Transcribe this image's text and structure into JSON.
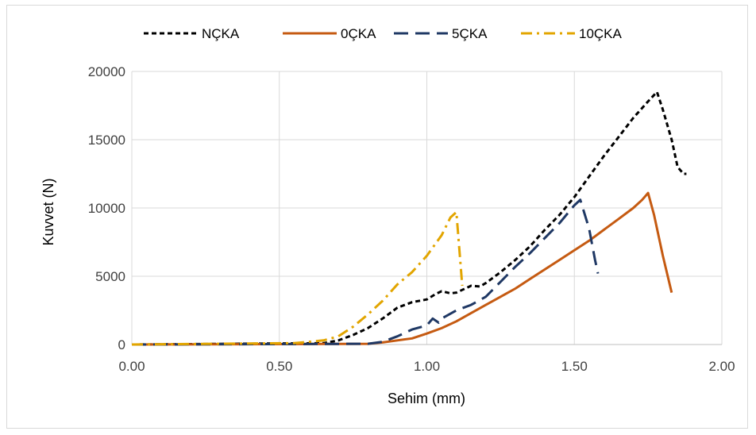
{
  "chart_data": {
    "type": "line",
    "title": "",
    "xlabel": "Sehim (mm)",
    "ylabel": "Kuvvet (N)",
    "xlim": [
      0,
      2
    ],
    "ylim": [
      0,
      20000
    ],
    "xticks": [
      0,
      0.5,
      1,
      1.5,
      2
    ],
    "xtick_labels": [
      "0.00",
      "0.50",
      "1.00",
      "1.50",
      "2.00"
    ],
    "yticks": [
      0,
      5000,
      10000,
      15000,
      20000
    ],
    "ytick_labels": [
      "0",
      "5000",
      "10000",
      "15000",
      "20000"
    ],
    "grid": true,
    "legend_position": "top",
    "series": [
      {
        "name": "NÇKA",
        "color": "#000000",
        "dash": "short-dash",
        "points": [
          [
            0,
            0
          ],
          [
            0.65,
            100
          ],
          [
            0.7,
            300
          ],
          [
            0.75,
            700
          ],
          [
            0.8,
            1200
          ],
          [
            0.85,
            1900
          ],
          [
            0.9,
            2700
          ],
          [
            0.95,
            3100
          ],
          [
            1.0,
            3300
          ],
          [
            1.03,
            3700
          ],
          [
            1.05,
            3900
          ],
          [
            1.08,
            3750
          ],
          [
            1.1,
            3800
          ],
          [
            1.13,
            4100
          ],
          [
            1.15,
            4300
          ],
          [
            1.18,
            4250
          ],
          [
            1.2,
            4500
          ],
          [
            1.25,
            5300
          ],
          [
            1.3,
            6200
          ],
          [
            1.35,
            7200
          ],
          [
            1.4,
            8400
          ],
          [
            1.45,
            9500
          ],
          [
            1.5,
            10800
          ],
          [
            1.55,
            12300
          ],
          [
            1.6,
            13800
          ],
          [
            1.65,
            15200
          ],
          [
            1.7,
            16600
          ],
          [
            1.75,
            17800
          ],
          [
            1.78,
            18500
          ],
          [
            1.8,
            17200
          ],
          [
            1.83,
            15000
          ],
          [
            1.85,
            13000
          ],
          [
            1.87,
            12500
          ],
          [
            1.88,
            12500
          ]
        ]
      },
      {
        "name": "0ÇKA",
        "color": "#c55a11",
        "dash": "solid",
        "points": [
          [
            0,
            0
          ],
          [
            0.8,
            50
          ],
          [
            0.85,
            150
          ],
          [
            0.9,
            300
          ],
          [
            0.95,
            450
          ],
          [
            1.0,
            800
          ],
          [
            1.05,
            1200
          ],
          [
            1.1,
            1700
          ],
          [
            1.15,
            2300
          ],
          [
            1.2,
            2900
          ],
          [
            1.25,
            3500
          ],
          [
            1.3,
            4100
          ],
          [
            1.35,
            4800
          ],
          [
            1.4,
            5500
          ],
          [
            1.45,
            6200
          ],
          [
            1.5,
            6900
          ],
          [
            1.55,
            7600
          ],
          [
            1.6,
            8400
          ],
          [
            1.65,
            9200
          ],
          [
            1.7,
            10000
          ],
          [
            1.73,
            10600
          ],
          [
            1.75,
            11100
          ],
          [
            1.77,
            9500
          ],
          [
            1.8,
            6500
          ],
          [
            1.83,
            3800
          ]
        ]
      },
      {
        "name": "5ÇKA",
        "color": "#1f3864",
        "dash": "long-dash",
        "points": [
          [
            0,
            0
          ],
          [
            0.8,
            50
          ],
          [
            0.85,
            200
          ],
          [
            0.9,
            600
          ],
          [
            0.95,
            1100
          ],
          [
            1.0,
            1400
          ],
          [
            1.02,
            1900
          ],
          [
            1.04,
            1600
          ],
          [
            1.05,
            1900
          ],
          [
            1.1,
            2500
          ],
          [
            1.15,
            2900
          ],
          [
            1.2,
            3500
          ],
          [
            1.25,
            4600
          ],
          [
            1.3,
            5700
          ],
          [
            1.35,
            6700
          ],
          [
            1.4,
            7800
          ],
          [
            1.45,
            8900
          ],
          [
            1.5,
            10200
          ],
          [
            1.52,
            10600
          ],
          [
            1.55,
            8500
          ],
          [
            1.57,
            6200
          ],
          [
            1.58,
            5200
          ]
        ]
      },
      {
        "name": "10ÇKA",
        "color": "#e2a500",
        "dash": "dash-dot",
        "points": [
          [
            0,
            0
          ],
          [
            0.55,
            100
          ],
          [
            0.6,
            200
          ],
          [
            0.65,
            300
          ],
          [
            0.7,
            600
          ],
          [
            0.75,
            1300
          ],
          [
            0.8,
            2200
          ],
          [
            0.85,
            3200
          ],
          [
            0.9,
            4400
          ],
          [
            0.95,
            5300
          ],
          [
            1.0,
            6500
          ],
          [
            1.05,
            8000
          ],
          [
            1.08,
            9300
          ],
          [
            1.1,
            9700
          ],
          [
            1.11,
            7000
          ],
          [
            1.12,
            4300
          ]
        ]
      }
    ]
  }
}
